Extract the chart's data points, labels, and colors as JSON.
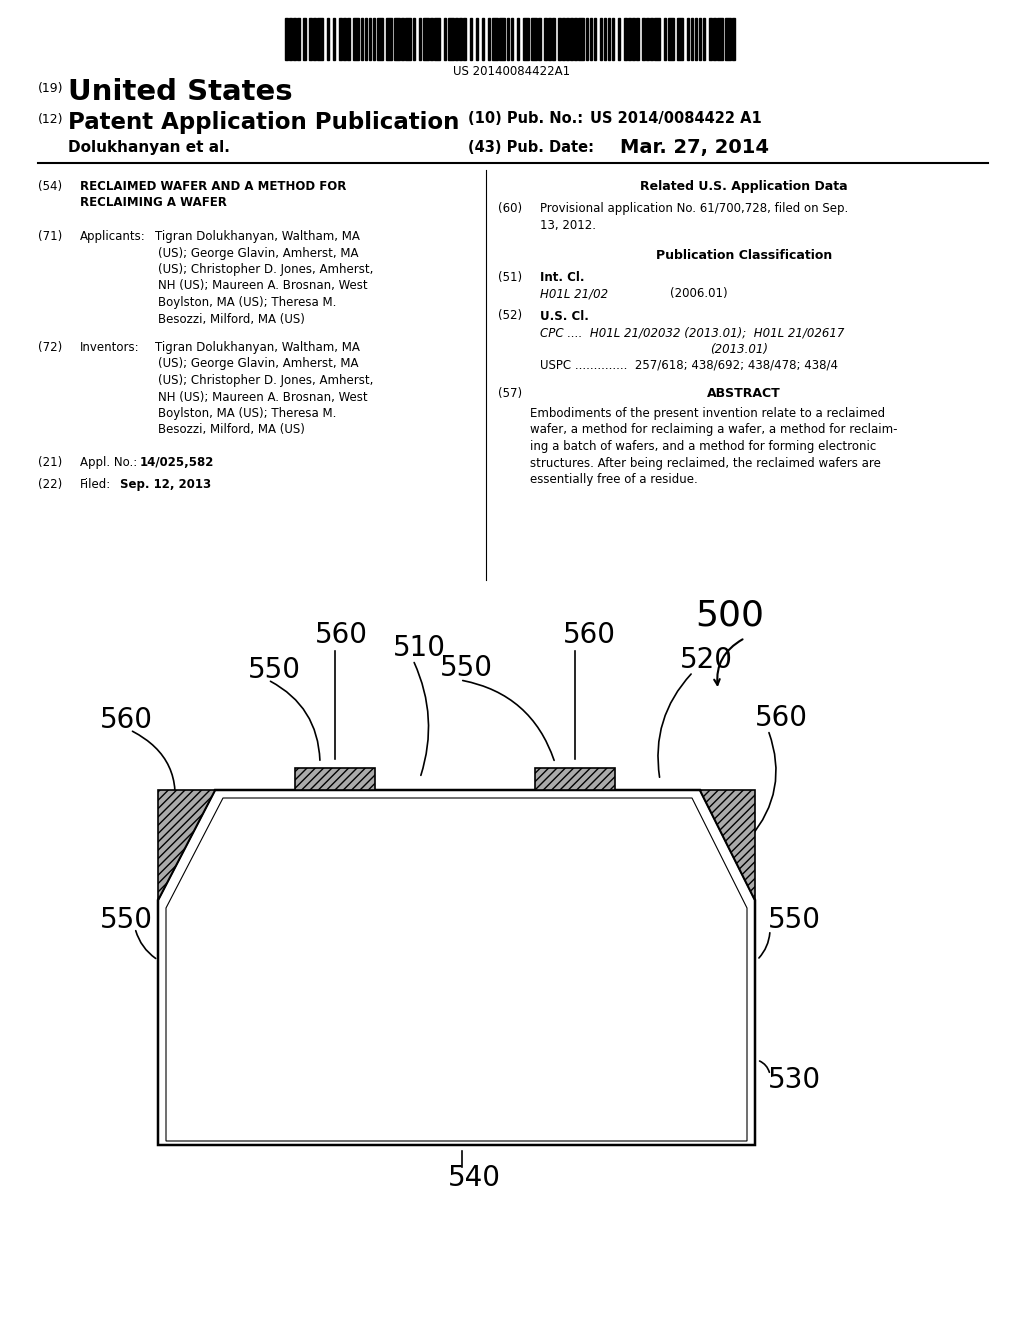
{
  "bg_color": "#ffffff",
  "barcode_text": "US 20140084422A1",
  "header_19": "(19)",
  "header_us": "United States",
  "header_12": "(12)",
  "header_patent": "Patent Application Publication",
  "header_10_label": "(10) Pub. No.:",
  "header_10_val": "US 2014/0084422 A1",
  "header_applicant": "Dolukhanyan et al.",
  "header_43_label": "(43) Pub. Date:",
  "header_date": "Mar. 27, 2014",
  "field_54_label": "(54)",
  "field_54_text": "RECLAIMED WAFER AND A METHOD FOR\nRECLAIMING A WAFER",
  "field_71_label": "(71)",
  "field_71_title": "Applicants:",
  "field_71_lines": [
    "Tigran Dolukhanyan, Waltham, MA",
    "(US); George Glavin, Amherst, MA",
    "(US); Christopher D. Jones, Amherst,",
    "NH (US); Maureen A. Brosnan, West",
    "Boylston, MA (US); Theresa M.",
    "Besozzi, Milford, MA (US)"
  ],
  "field_72_label": "(72)",
  "field_72_title": "Inventors:",
  "field_72_lines": [
    "Tigran Dolukhanyan, Waltham, MA",
    "(US); George Glavin, Amherst, MA",
    "(US); Christopher D. Jones, Amherst,",
    "NH (US); Maureen A. Brosnan, West",
    "Boylston, MA (US); Theresa M.",
    "Besozzi, Milford, MA (US)"
  ],
  "field_21_label": "(21)",
  "field_21_pre": "Appl. No.:",
  "field_21_val": "14/025,582",
  "field_22_label": "(22)",
  "field_22_pre": "Filed:",
  "field_22_val": "Sep. 12, 2013",
  "related_title": "Related U.S. Application Data",
  "field_60_label": "(60)",
  "field_60_lines": [
    "Provisional application No. 61/700,728, filed on Sep.",
    "13, 2012."
  ],
  "pub_class_title": "Publication Classification",
  "field_51_label": "(51)",
  "field_51_title": "Int. Cl.",
  "field_51_class": "H01L 21/02",
  "field_51_date": "(2006.01)",
  "field_52_label": "(52)",
  "field_52_title": "U.S. Cl.",
  "field_52_cpc1": "CPC ....  H01L 21/02032 (2013.01);  H01L 21/02617",
  "field_52_cpc2": "(2013.01)",
  "field_52_uspc": "USPC ..............  257/618; 438/692; 438/478; 438/4",
  "field_57_label": "(57)",
  "field_57_title": "ABSTRACT",
  "field_57_lines": [
    "Embodiments of the present invention relate to a reclaimed",
    "wafer, a method for reclaiming a wafer, a method for reclaim-",
    "ing a batch of wafers, and a method for forming electronic",
    "structures. After being reclaimed, the reclaimed wafers are",
    "essentially free of a residue."
  ]
}
